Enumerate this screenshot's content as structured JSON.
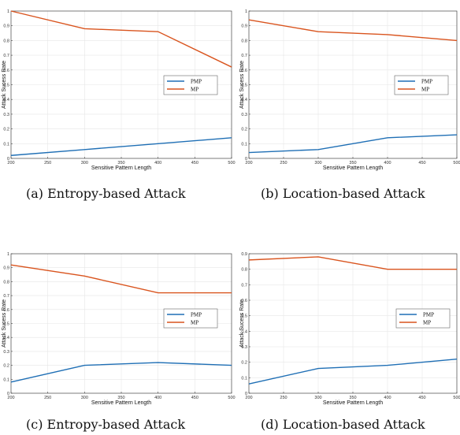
{
  "chart_data": [
    {
      "type": "line",
      "caption": "(a) Entropy-based Attack",
      "xlabel": "Sensitive Pattern Length",
      "ylabel": "Attack Sucess Rate",
      "x": [
        200,
        300,
        400,
        500
      ],
      "xlim": [
        200,
        500
      ],
      "ylim": [
        0,
        1
      ],
      "xticks": [
        200,
        250,
        300,
        350,
        400,
        450,
        500
      ],
      "yticks": [
        0,
        0.1,
        0.2,
        0.3,
        0.4,
        0.5,
        0.6,
        0.7,
        0.8,
        0.9,
        1
      ],
      "grid": true,
      "legend": "right",
      "series": [
        {
          "name": "PMP",
          "color": "#1f6fb5",
          "values": [
            0.02,
            0.06,
            0.1,
            0.14
          ]
        },
        {
          "name": "MP",
          "color": "#d9541e",
          "values": [
            1.0,
            0.88,
            0.86,
            0.62
          ]
        }
      ]
    },
    {
      "type": "line",
      "caption": "(b) Location-based Attack",
      "xlabel": "Sensitive Pattern Length",
      "ylabel": "Attack Sucess Rate",
      "x": [
        200,
        300,
        400,
        500
      ],
      "xlim": [
        200,
        500
      ],
      "ylim": [
        0,
        1
      ],
      "xticks": [
        200,
        250,
        300,
        350,
        400,
        450,
        500
      ],
      "yticks": [
        0,
        0.1,
        0.2,
        0.3,
        0.4,
        0.5,
        0.6,
        0.7,
        0.8,
        0.9,
        1
      ],
      "grid": true,
      "legend": "right",
      "series": [
        {
          "name": "PMP",
          "color": "#1f6fb5",
          "values": [
            0.04,
            0.06,
            0.14,
            0.16
          ]
        },
        {
          "name": "MP",
          "color": "#d9541e",
          "values": [
            0.94,
            0.86,
            0.84,
            0.8
          ]
        }
      ]
    },
    {
      "type": "line",
      "caption": "(c) Entropy-based Attack",
      "xlabel": "Sensitive Pattern Length",
      "ylabel": "Attack Sucess Rate",
      "x": [
        200,
        300,
        400,
        500
      ],
      "xlim": [
        200,
        500
      ],
      "ylim": [
        0,
        1
      ],
      "xticks": [
        200,
        250,
        300,
        350,
        400,
        450,
        500
      ],
      "yticks": [
        0,
        0.1,
        0.2,
        0.3,
        0.4,
        0.5,
        0.6,
        0.7,
        0.8,
        0.9,
        1
      ],
      "grid": true,
      "legend": "right",
      "series": [
        {
          "name": "PMP",
          "color": "#1f6fb5",
          "values": [
            0.08,
            0.2,
            0.22,
            0.2
          ]
        },
        {
          "name": "MP",
          "color": "#d9541e",
          "values": [
            0.92,
            0.84,
            0.72,
            0.72
          ]
        }
      ]
    },
    {
      "type": "line",
      "caption": "(d) Location-based Attack",
      "xlabel": "Sensitive Pattern Length",
      "ylabel": "Attack Sucess Rate",
      "x": [
        200,
        300,
        400,
        500
      ],
      "xlim": [
        200,
        500
      ],
      "ylim": [
        0,
        0.9
      ],
      "xticks": [
        200,
        250,
        300,
        350,
        400,
        450,
        500
      ],
      "yticks": [
        0,
        0.1,
        0.2,
        0.3,
        0.4,
        0.5,
        0.6,
        0.7,
        0.8,
        0.9
      ],
      "grid": true,
      "legend": "right",
      "series": [
        {
          "name": "PMP",
          "color": "#1f6fb5",
          "values": [
            0.06,
            0.16,
            0.18,
            0.22
          ]
        },
        {
          "name": "MP",
          "color": "#d9541e",
          "values": [
            0.86,
            0.88,
            0.8,
            0.8
          ]
        }
      ]
    }
  ]
}
